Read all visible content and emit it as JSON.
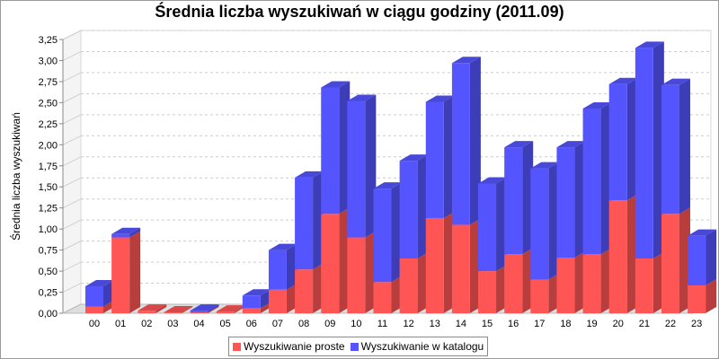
{
  "chart_data": {
    "type": "bar",
    "stacked": true,
    "three_d": true,
    "title": "Średnia liczba wyszukiwań w ciągu godziny (2011.09)",
    "xlabel": "",
    "ylabel": "Średnia liczba wyszukiwań",
    "ylim": [
      0,
      3.25
    ],
    "yticks": [
      "0,00",
      "0,25",
      "0,50",
      "0,75",
      "1,00",
      "1,25",
      "1,50",
      "1,75",
      "2,00",
      "2,25",
      "2,50",
      "2,75",
      "3,00",
      "3,25"
    ],
    "categories": [
      "00",
      "01",
      "02",
      "03",
      "04",
      "05",
      "06",
      "07",
      "08",
      "09",
      "10",
      "11",
      "12",
      "13",
      "14",
      "15",
      "16",
      "17",
      "18",
      "19",
      "20",
      "21",
      "22",
      "23"
    ],
    "grid": true,
    "legend_position": "bottom",
    "series": [
      {
        "name": "Wyszukiwanie proste",
        "color": "#ff5555",
        "values": [
          0.08,
          0.9,
          0.03,
          0.01,
          0.01,
          0.02,
          0.06,
          0.28,
          0.52,
          1.18,
          0.9,
          0.37,
          0.65,
          1.13,
          1.05,
          0.5,
          0.7,
          0.4,
          0.66,
          0.7,
          1.34,
          0.65,
          1.18,
          0.33
        ]
      },
      {
        "name": "Wyszukiwanie w katalogu",
        "color": "#5555ff",
        "values": [
          0.24,
          0.04,
          0.0,
          0.0,
          0.02,
          0.0,
          0.15,
          0.47,
          1.09,
          1.5,
          1.62,
          1.11,
          1.16,
          1.38,
          1.92,
          1.04,
          1.27,
          1.32,
          1.31,
          1.73,
          1.38,
          2.5,
          1.53,
          0.59
        ]
      }
    ]
  }
}
